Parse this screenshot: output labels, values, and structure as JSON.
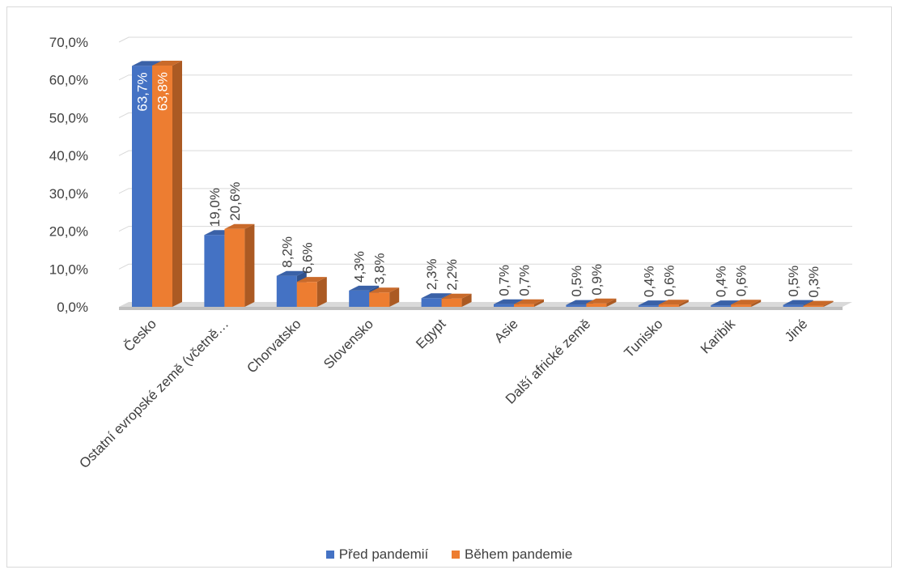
{
  "chart_data": {
    "type": "bar",
    "categories": [
      "Česko",
      "Ostatní evropské země (včetně…",
      "Chorvatsko",
      "Slovensko",
      "Egypt",
      "Asie",
      "Další africké země",
      "Tunisko",
      "Karibik",
      "Jiné"
    ],
    "series": [
      {
        "name": "Před pandemií",
        "color": "#4472c4",
        "values": [
          63.7,
          19.0,
          8.2,
          4.3,
          2.3,
          0.7,
          0.5,
          0.4,
          0.4,
          0.5
        ],
        "labels": [
          "63,7%",
          "19,0%",
          "8,2%",
          "4,3%",
          "2,3%",
          "0,7%",
          "0,5%",
          "0,4%",
          "0,4%",
          "0,5%"
        ]
      },
      {
        "name": "Během pandemie",
        "color": "#ed7d31",
        "values": [
          63.8,
          20.6,
          6.6,
          3.8,
          2.2,
          0.7,
          0.9,
          0.6,
          0.6,
          0.3
        ],
        "labels": [
          "63,8%",
          "20,6%",
          "6,6%",
          "3,8%",
          "2,2%",
          "0,7%",
          "0,9%",
          "0,6%",
          "0,6%",
          "0,3%"
        ]
      }
    ],
    "y_ticks": [
      "0,0%",
      "10,0%",
      "20,0%",
      "30,0%",
      "40,0%",
      "50,0%",
      "60,0%",
      "70,0%"
    ],
    "ylim": [
      0,
      70
    ],
    "grid": true,
    "legend_position": "bottom",
    "style": "3d-clustered-column"
  }
}
